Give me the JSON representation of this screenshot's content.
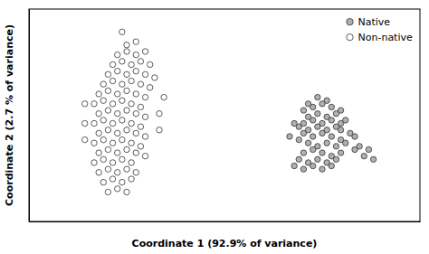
{
  "chart_data": {
    "type": "scatter",
    "xlabel": "Coordinate 1 (92.9% of variance)",
    "ylabel": "Coordinate 2 (2.7 % of variance)",
    "xlim": [
      -0.42,
      0.42
    ],
    "ylim": [
      -0.3,
      0.35
    ],
    "tick_labels": false,
    "legend": "upper right",
    "series": [
      {
        "name": "Native",
        "color": "#b0b0b0",
        "marker": "circle",
        "x": [
          0.18,
          0.2,
          0.22,
          0.17,
          0.19,
          0.21,
          0.23,
          0.18,
          0.2,
          0.22,
          0.24,
          0.25,
          0.17,
          0.19,
          0.21,
          0.23,
          0.25,
          0.26,
          0.16,
          0.18,
          0.2,
          0.22,
          0.24,
          0.25,
          0.17,
          0.19,
          0.21,
          0.23,
          0.25,
          0.27,
          0.18,
          0.2,
          0.22,
          0.24,
          0.26,
          0.17,
          0.19,
          0.21,
          0.23,
          0.25,
          0.28,
          0.16,
          0.18,
          0.2,
          0.22,
          0.24,
          0.15,
          0.17,
          0.19,
          0.21,
          0.23,
          0.3,
          0.32,
          0.29,
          0.31,
          0.28,
          0.15,
          0.14,
          0.16
        ],
        "values": [
          0.06,
          0.08,
          0.07,
          0.04,
          0.05,
          0.06,
          0.05,
          0.02,
          0.03,
          0.02,
          0.03,
          0.04,
          0.0,
          0.01,
          0.0,
          0.01,
          0.0,
          0.01,
          -0.01,
          -0.02,
          -0.01,
          -0.02,
          -0.01,
          -0.02,
          -0.03,
          -0.04,
          -0.03,
          -0.04,
          -0.05,
          -0.03,
          -0.06,
          -0.07,
          -0.06,
          -0.07,
          -0.06,
          -0.09,
          -0.08,
          -0.09,
          -0.1,
          -0.09,
          -0.08,
          -0.11,
          -0.12,
          -0.11,
          -0.12,
          -0.11,
          -0.13,
          -0.14,
          -0.13,
          -0.14,
          -0.13,
          -0.1,
          -0.11,
          -0.07,
          -0.08,
          -0.04,
          0.0,
          -0.04,
          -0.05
        ]
      },
      {
        "name": "Non-native",
        "color": "#ffffff",
        "marker": "circle",
        "x": [
          -0.22,
          -0.21,
          -0.19,
          -0.23,
          -0.21,
          -0.19,
          -0.17,
          -0.24,
          -0.22,
          -0.2,
          -0.18,
          -0.16,
          -0.25,
          -0.23,
          -0.21,
          -0.19,
          -0.17,
          -0.15,
          -0.26,
          -0.24,
          -0.22,
          -0.2,
          -0.18,
          -0.16,
          -0.27,
          -0.25,
          -0.23,
          -0.21,
          -0.19,
          -0.17,
          -0.28,
          -0.26,
          -0.24,
          -0.22,
          -0.2,
          -0.18,
          -0.27,
          -0.25,
          -0.23,
          -0.21,
          -0.19,
          -0.17,
          -0.28,
          -0.26,
          -0.24,
          -0.22,
          -0.2,
          -0.18,
          -0.27,
          -0.25,
          -0.23,
          -0.21,
          -0.19,
          -0.17,
          -0.28,
          -0.26,
          -0.24,
          -0.22,
          -0.2,
          -0.18,
          -0.27,
          -0.25,
          -0.23,
          -0.21,
          -0.19,
          -0.17,
          -0.28,
          -0.26,
          -0.24,
          -0.22,
          -0.2,
          -0.27,
          -0.25,
          -0.23,
          -0.21,
          -0.19,
          -0.26,
          -0.24,
          -0.22,
          -0.2,
          -0.25,
          -0.23,
          -0.21,
          -0.3,
          -0.3,
          -0.3,
          -0.14,
          -0.14,
          -0.13
        ],
        "values": [
          0.28,
          0.24,
          0.25,
          0.21,
          0.22,
          0.21,
          0.22,
          0.18,
          0.19,
          0.18,
          0.19,
          0.18,
          0.15,
          0.16,
          0.15,
          0.16,
          0.15,
          0.14,
          0.12,
          0.13,
          0.12,
          0.13,
          0.12,
          0.11,
          0.09,
          0.1,
          0.09,
          0.1,
          0.09,
          0.08,
          0.06,
          0.07,
          0.06,
          0.07,
          0.06,
          0.05,
          0.03,
          0.04,
          0.03,
          0.04,
          0.03,
          0.02,
          0.0,
          0.01,
          0.0,
          0.01,
          0.0,
          -0.01,
          -0.03,
          -0.02,
          -0.03,
          -0.02,
          -0.03,
          -0.04,
          -0.06,
          -0.05,
          -0.06,
          -0.05,
          -0.06,
          -0.07,
          -0.09,
          -0.08,
          -0.09,
          -0.08,
          -0.09,
          -0.1,
          -0.12,
          -0.11,
          -0.12,
          -0.11,
          -0.12,
          -0.15,
          -0.14,
          -0.15,
          -0.14,
          -0.15,
          -0.18,
          -0.17,
          -0.18,
          -0.17,
          -0.21,
          -0.2,
          -0.21,
          0.06,
          0.0,
          -0.05,
          0.03,
          -0.02,
          0.08
        ]
      }
    ]
  }
}
